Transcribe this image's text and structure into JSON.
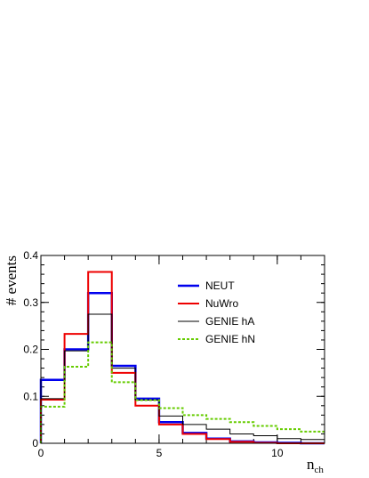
{
  "chart_data": {
    "type": "line",
    "step": true,
    "xlabel": "n",
    "xlabel_sub": "ch",
    "ylabel": "# events",
    "xlim": [
      0,
      12
    ],
    "ylim": [
      0,
      0.4
    ],
    "x_ticks": [
      "0",
      "5",
      "10"
    ],
    "y_ticks": [
      "0",
      "0.1",
      "0.2",
      "0.3",
      "0.4"
    ],
    "bin_edges": [
      0,
      1,
      2,
      3,
      4,
      5,
      6,
      7,
      8,
      9,
      10,
      11,
      12
    ],
    "grid": false,
    "legend_position": "top-right",
    "series": [
      {
        "name": "NEUT",
        "color": "#0000ee",
        "style": "solid",
        "values": [
          0.135,
          0.2,
          0.32,
          0.165,
          0.095,
          0.045,
          0.022,
          0.01,
          0.004,
          0.002,
          0.001,
          0.0
        ]
      },
      {
        "name": "NuWro",
        "color": "#ee0000",
        "style": "solid",
        "values": [
          0.093,
          0.233,
          0.365,
          0.15,
          0.08,
          0.04,
          0.02,
          0.009,
          0.003,
          0.001,
          0.0,
          0.0
        ]
      },
      {
        "name": "GENIE hA",
        "color": "#000000",
        "style": "solid",
        "values": [
          0.095,
          0.197,
          0.275,
          0.16,
          0.092,
          0.058,
          0.04,
          0.03,
          0.02,
          0.016,
          0.01,
          0.008
        ]
      },
      {
        "name": "GENIE hN",
        "color": "#66cc00",
        "style": "dashed",
        "values": [
          0.078,
          0.163,
          0.215,
          0.13,
          0.092,
          0.075,
          0.06,
          0.052,
          0.045,
          0.037,
          0.03,
          0.025
        ]
      }
    ]
  }
}
